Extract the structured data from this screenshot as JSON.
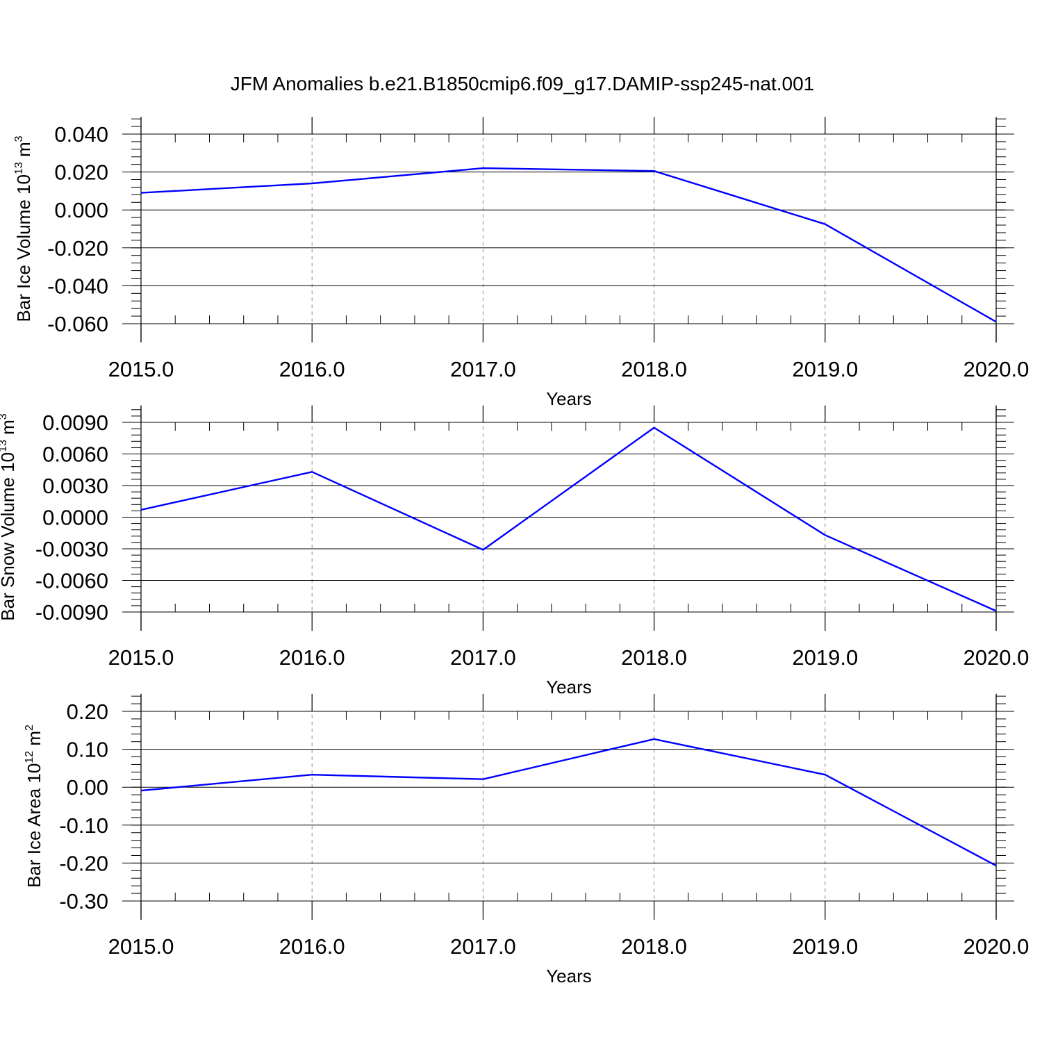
{
  "title": "JFM Anomalies b.e21.B1850cmip6.f09_g17.DAMIP-ssp245-nat.001",
  "colors": {
    "line": "#0000ff",
    "axis": "#000000",
    "grid": "#888888"
  },
  "chart_data": [
    {
      "type": "line",
      "ylabel": {
        "main": "Bar Ice Volume 10",
        "sup1": "13",
        "mid": " m",
        "sup2": "3"
      },
      "xlabel": "Years",
      "x": [
        2015,
        2016,
        2017,
        2018,
        2019,
        2020
      ],
      "series": [
        {
          "values": [
            0.009,
            0.014,
            0.022,
            0.0205,
            -0.0075,
            -0.059
          ]
        }
      ],
      "xlim": [
        2015,
        2020
      ],
      "ylim": [
        -0.06,
        0.04
      ],
      "xticks": [
        "2015.0",
        "2016.0",
        "2017.0",
        "2018.0",
        "2019.0",
        "2020.0"
      ],
      "yticks": [
        {
          "v": 0.04,
          "label": "0.040"
        },
        {
          "v": 0.02,
          "label": "0.020"
        },
        {
          "v": 0.0,
          "label": "0.000"
        },
        {
          "v": -0.02,
          "label": "-0.020"
        },
        {
          "v": -0.04,
          "label": "-0.040"
        },
        {
          "v": -0.06,
          "label": "-0.060"
        }
      ],
      "yminor_step": 0.004,
      "ytop_extend": 0.009,
      "grid": "vertical dashed at major x ticks"
    },
    {
      "type": "line",
      "ylabel": {
        "main": "Bar Snow Volume 10",
        "sup1": "13",
        "mid": " m",
        "sup2": "3"
      },
      "xlabel": "Years",
      "x": [
        2015,
        2016,
        2017,
        2018,
        2019,
        2020
      ],
      "series": [
        {
          "values": [
            0.0007,
            0.0043,
            -0.0031,
            0.0085,
            -0.0017,
            -0.0089
          ]
        }
      ],
      "xlim": [
        2015,
        2020
      ],
      "ylim": [
        -0.009,
        0.009
      ],
      "xticks": [
        "2015.0",
        "2016.0",
        "2017.0",
        "2018.0",
        "2019.0",
        "2020.0"
      ],
      "yticks": [
        {
          "v": 0.009,
          "label": "0.0090"
        },
        {
          "v": 0.006,
          "label": "0.0060"
        },
        {
          "v": 0.003,
          "label": "0.0030"
        },
        {
          "v": 0.0,
          "label": "0.0000"
        },
        {
          "v": -0.003,
          "label": "-0.0030"
        },
        {
          "v": -0.006,
          "label": "-0.0060"
        },
        {
          "v": -0.009,
          "label": "-0.0090"
        }
      ],
      "yminor_step": 0.0006,
      "ytop_extend": 0.0016,
      "grid": "vertical dashed at major x ticks"
    },
    {
      "type": "line",
      "ylabel": {
        "main": "Bar Ice Area 10",
        "sup1": "12",
        "mid": " m",
        "sup2": "2"
      },
      "xlabel": "Years",
      "x": [
        2015,
        2016,
        2017,
        2018,
        2019,
        2020
      ],
      "series": [
        {
          "values": [
            -0.009,
            0.033,
            0.021,
            0.127,
            0.033,
            -0.207
          ]
        }
      ],
      "xlim": [
        2015,
        2020
      ],
      "ylim": [
        -0.3,
        0.2
      ],
      "xticks": [
        "2015.0",
        "2016.0",
        "2017.0",
        "2018.0",
        "2019.0",
        "2020.0"
      ],
      "yticks": [
        {
          "v": 0.2,
          "label": "0.20"
        },
        {
          "v": 0.1,
          "label": "0.10"
        },
        {
          "v": 0.0,
          "label": "0.00"
        },
        {
          "v": -0.1,
          "label": "-0.10"
        },
        {
          "v": -0.2,
          "label": "-0.20"
        },
        {
          "v": -0.3,
          "label": "-0.30"
        }
      ],
      "yminor_step": 0.02,
      "ytop_extend": 0.046,
      "grid": "vertical dashed at major x ticks"
    }
  ]
}
